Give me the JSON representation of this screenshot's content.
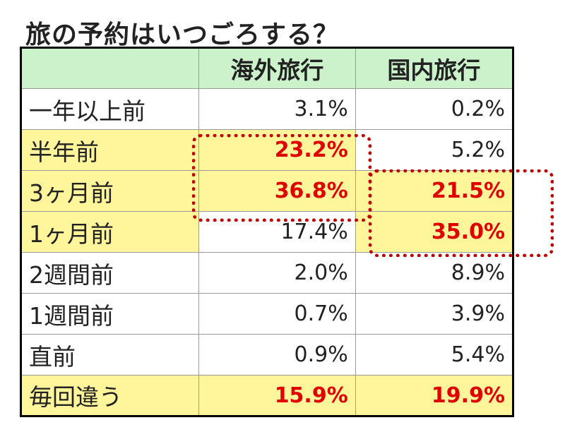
{
  "chart_data": {
    "type": "table",
    "title": "旅の予約はいつごろする？",
    "columns": [
      "",
      "海外旅行",
      "国内旅行"
    ],
    "rows": [
      {
        "label": "一年以上前",
        "values": [
          "3.1%",
          "0.2%"
        ],
        "highlight_row": false,
        "red": [
          false,
          false
        ]
      },
      {
        "label": "半年前",
        "values": [
          "23.2%",
          "5.2%"
        ],
        "highlight_row": true,
        "red": [
          true,
          false
        ]
      },
      {
        "label": "3ヶ月前",
        "values": [
          "36.8%",
          "21.5%"
        ],
        "highlight_row": true,
        "red": [
          true,
          true
        ]
      },
      {
        "label": "1ヶ月前",
        "values": [
          "17.4%",
          "35.0%"
        ],
        "highlight_row": true,
        "red": [
          false,
          true
        ]
      },
      {
        "label": "2週間前",
        "values": [
          "2.0%",
          "8.9%"
        ],
        "highlight_row": false,
        "red": [
          false,
          false
        ]
      },
      {
        "label": "1週間前",
        "values": [
          "0.7%",
          "3.9%"
        ],
        "highlight_row": false,
        "red": [
          false,
          false
        ]
      },
      {
        "label": "直前",
        "values": [
          "0.9%",
          "5.4%"
        ],
        "highlight_row": false,
        "red": [
          false,
          false
        ]
      },
      {
        "label": "毎回違う",
        "values": [
          "15.9%",
          "19.9%"
        ],
        "highlight_row": true,
        "red": [
          true,
          true
        ]
      }
    ],
    "colors": {
      "header_bg": "#ccf2cc",
      "highlight_bg": "#fff59a",
      "emphasis_text": "#e00000",
      "dotted_outline": "#c00000"
    }
  }
}
